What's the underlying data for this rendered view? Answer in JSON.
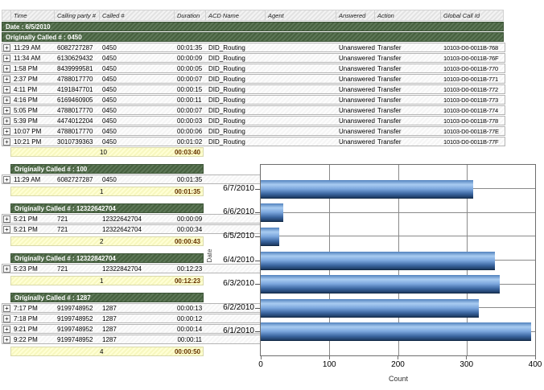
{
  "colors": {
    "group_band_green_light": "#5d7757",
    "group_band_green_dark": "#47613f",
    "header_bg": "#e9e9e9",
    "row_border": "#b5b5b5",
    "summary_bg": "#ffffcc",
    "summary_duration_text": "#663300",
    "bar_blue_light": "#a9ccf1",
    "bar_blue_dark": "#1c3a61",
    "grid_line": "#8a8a8a"
  },
  "table": {
    "expander_symbol": "+",
    "header_labels": [
      "",
      "Time",
      "Calling party #",
      "Called #",
      "Duration",
      "ACD Name",
      "Agent",
      "Answered",
      "Action",
      "Global Call Id"
    ],
    "date_label": "Date : 6/5/2010",
    "groups": [
      {
        "title": "Originally Called # : 0450",
        "rows": [
          [
            "11:29 AM",
            "6082727287",
            "0450",
            "00:01:35",
            "DID_Routing",
            "",
            "Unanswered",
            "Transfer",
            "10103-D0-0011B-768"
          ],
          [
            "11:34 AM",
            "6130629432",
            "0450",
            "00:00:09",
            "DID_Routing",
            "",
            "Unanswered",
            "Transfer",
            "10103-D0-0011B-76F"
          ],
          [
            "1:58 PM",
            "8439999581",
            "0450",
            "00:00:05",
            "DID_Routing",
            "",
            "Unanswered",
            "Transfer",
            "10103-D0-0011B-770"
          ],
          [
            "2:37 PM",
            "4788017770",
            "0450",
            "00:00:07",
            "DID_Routing",
            "",
            "Unanswered",
            "Transfer",
            "10103-D0-0011B-771"
          ],
          [
            "4:11 PM",
            "4191847701",
            "0450",
            "00:00:15",
            "DID_Routing",
            "",
            "Unanswered",
            "Transfer",
            "10103-D0-0011B-772"
          ],
          [
            "4:16 PM",
            "6169460905",
            "0450",
            "00:00:11",
            "DID_Routing",
            "",
            "Unanswered",
            "Transfer",
            "10103-D0-0011B-773"
          ],
          [
            "5:05 PM",
            "4788017770",
            "0450",
            "00:00:07",
            "DID_Routing",
            "",
            "Unanswered",
            "Transfer",
            "10103-D0-0011B-774"
          ],
          [
            "5:39 PM",
            "4474012204",
            "0450",
            "00:00:03",
            "DID_Routing",
            "",
            "Unanswered",
            "Transfer",
            "10103-D0-0011B-778"
          ],
          [
            "10:07 PM",
            "4788017770",
            "0450",
            "00:00:06",
            "DID_Routing",
            "",
            "Unanswered",
            "Transfer",
            "10103-D0-0011B-77E"
          ],
          [
            "10:21 PM",
            "3010739363",
            "0450",
            "00:01:02",
            "DID_Routing",
            "",
            "Unanswered",
            "Transfer",
            "10103-D0-0011B-77F"
          ]
        ],
        "summary": {
          "count": "10",
          "duration": "00:03:40"
        }
      },
      {
        "title": "Originally Called # : 100",
        "rows": [
          [
            "11:29 AM",
            "6082727287",
            "0450",
            "00:01:35"
          ]
        ],
        "summary": {
          "count": "1",
          "duration": "00:01:35"
        }
      },
      {
        "title": "Originally Called # : 12322642704",
        "rows": [
          [
            "5:21 PM",
            "721",
            "12322642704",
            "00:00:09"
          ],
          [
            "5:21 PM",
            "721",
            "12322642704",
            "00:00:34"
          ]
        ],
        "summary": {
          "count": "2",
          "duration": "00:00:43"
        }
      },
      {
        "title": "Originally Called # : 12322842704",
        "rows": [
          [
            "5:23 PM",
            "721",
            "12322842704",
            "00:12:23"
          ]
        ],
        "summary": {
          "count": "1",
          "duration": "00:12:23"
        }
      },
      {
        "title": "Originally Called # : 1287",
        "rows": [
          [
            "7:17 PM",
            "9199748952",
            "1287",
            "00:00:13"
          ],
          [
            "7:18 PM",
            "9199748952",
            "1287",
            "00:00:12"
          ],
          [
            "9:21 PM",
            "9199748952",
            "1287",
            "00:00:14"
          ],
          [
            "9:22 PM",
            "9199748952",
            "1287",
            "00:00:11"
          ]
        ],
        "summary": {
          "count": "4",
          "duration": "00:00:50"
        }
      }
    ]
  },
  "chart_data": {
    "type": "bar",
    "orientation": "horizontal",
    "title": "",
    "xlabel": "Count",
    "ylabel": "Date",
    "categories": [
      "6/7/2010",
      "6/6/2010",
      "6/5/2010",
      "6/4/2010",
      "6/3/2010",
      "6/2/2010",
      "6/1/2010"
    ],
    "values": [
      310,
      33,
      27,
      341,
      348,
      318,
      394
    ],
    "xlim": [
      0,
      400
    ],
    "xticks": [
      0,
      100,
      200,
      300,
      400
    ],
    "grid": true,
    "legend_position": "none"
  }
}
